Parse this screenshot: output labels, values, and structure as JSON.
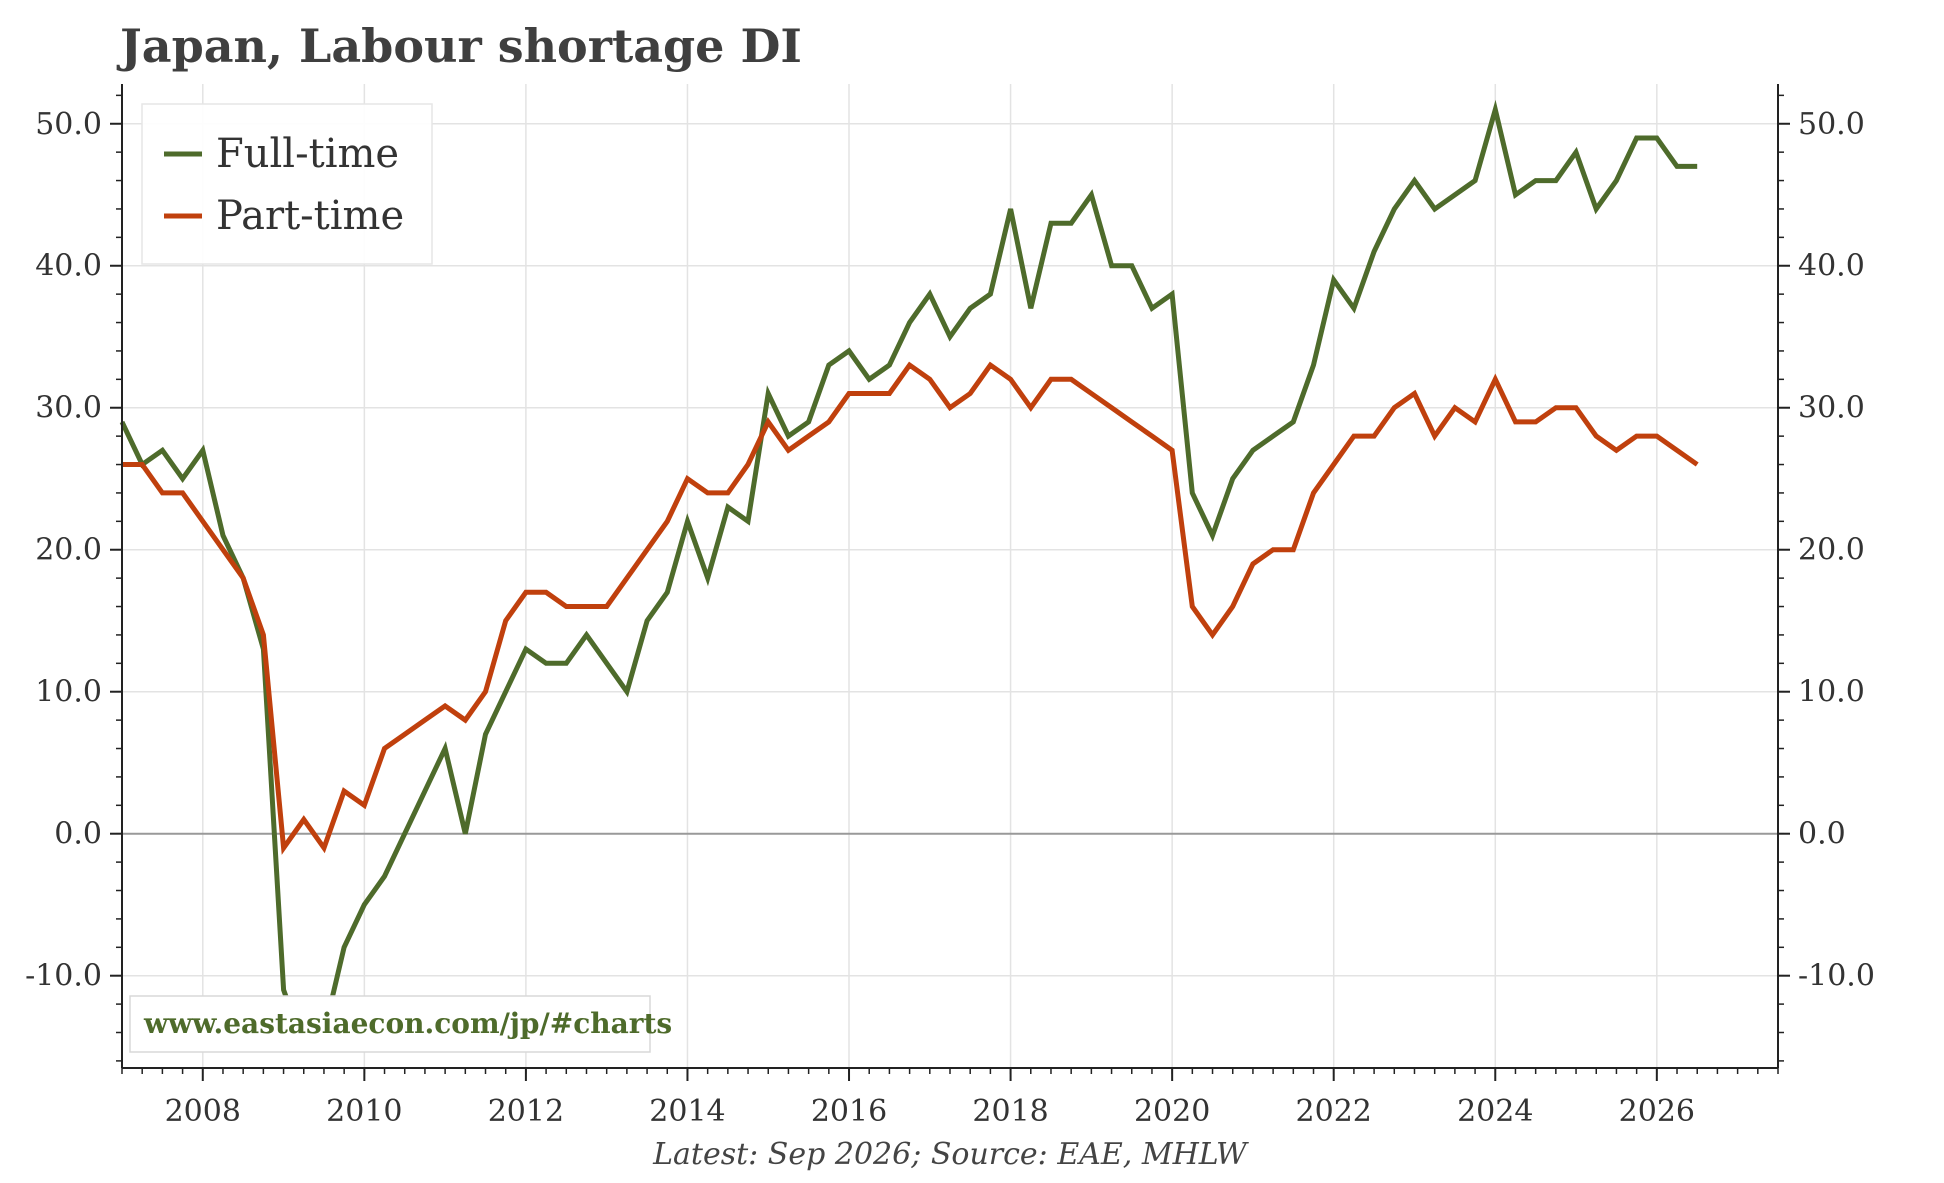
{
  "chart_data": {
    "type": "line",
    "title": "Japan, Labour shortage DI",
    "footer": "Latest: Sep 2026; Source: EAE, MHLW",
    "watermark": "www.eastasiaecon.com/jp/#charts",
    "xlim": [
      2007.0,
      2027.5
    ],
    "ylim": [
      -16.5,
      52.8
    ],
    "x_ticks": [
      2008,
      2010,
      2012,
      2014,
      2016,
      2018,
      2020,
      2022,
      2024,
      2026
    ],
    "x_tick_labels": [
      "2008",
      "2010",
      "2012",
      "2014",
      "2016",
      "2018",
      "2020",
      "2022",
      "2024",
      "2026"
    ],
    "y_ticks": [
      -10,
      0,
      10,
      20,
      30,
      40,
      50
    ],
    "y_tick_labels": [
      "-10.0",
      "0.0",
      "10.0",
      "20.0",
      "30.0",
      "40.0",
      "50.0"
    ],
    "y_minor_step": 2,
    "zero_line": true,
    "grid": true,
    "legend_position": "top-left",
    "colors": {
      "full_time": "#4e6b2b",
      "part_time": "#c0400d",
      "watermark": "#4e6b2b",
      "zero_line": "#999999",
      "grid": "#e3e3e3"
    },
    "series": [
      {
        "name": "Full-time",
        "color": "#4e6b2b",
        "x": [
          2007.0,
          2007.25,
          2007.5,
          2007.75,
          2008.0,
          2008.25,
          2008.5,
          2008.75,
          2009.0,
          2009.25,
          2009.5,
          2009.75,
          2010.0,
          2010.25,
          2010.5,
          2010.75,
          2011.0,
          2011.25,
          2011.5,
          2011.75,
          2012.0,
          2012.25,
          2012.5,
          2012.75,
          2013.0,
          2013.25,
          2013.5,
          2013.75,
          2014.0,
          2014.25,
          2014.5,
          2014.75,
          2015.0,
          2015.25,
          2015.5,
          2015.75,
          2016.0,
          2016.25,
          2016.5,
          2016.75,
          2017.0,
          2017.25,
          2017.5,
          2017.75,
          2018.0,
          2018.25,
          2018.5,
          2018.75,
          2019.0,
          2019.25,
          2019.5,
          2019.75,
          2020.0,
          2020.25,
          2020.5,
          2020.75,
          2021.0,
          2021.25,
          2021.5,
          2021.75,
          2022.0,
          2022.25,
          2022.5,
          2022.75,
          2023.0,
          2023.25,
          2023.5,
          2023.75,
          2024.0,
          2024.25,
          2024.5,
          2024.75,
          2025.0,
          2025.25,
          2025.5,
          2025.75,
          2026.0,
          2026.25,
          2026.5
        ],
        "values": [
          29,
          26,
          27,
          25,
          27,
          21,
          18,
          13,
          -11,
          -15,
          -14,
          -8,
          -5,
          -3,
          0,
          3,
          6,
          0,
          7,
          10,
          13,
          12,
          12,
          14,
          12,
          10,
          15,
          17,
          22,
          18,
          23,
          22,
          31,
          28,
          29,
          33,
          34,
          32,
          33,
          36,
          38,
          35,
          37,
          38,
          44,
          37,
          43,
          43,
          45,
          40,
          40,
          37,
          38,
          24,
          21,
          25,
          27,
          28,
          29,
          33,
          39,
          37,
          41,
          44,
          46,
          44,
          45,
          46,
          51,
          45,
          46,
          46,
          48,
          44,
          46,
          49,
          49,
          47,
          47
        ]
      },
      {
        "name": "Part-time",
        "color": "#c0400d",
        "x": [
          2007.0,
          2007.25,
          2007.5,
          2007.75,
          2008.0,
          2008.25,
          2008.5,
          2008.75,
          2009.0,
          2009.25,
          2009.5,
          2009.75,
          2010.0,
          2010.25,
          2010.5,
          2010.75,
          2011.0,
          2011.25,
          2011.5,
          2011.75,
          2012.0,
          2012.25,
          2012.5,
          2012.75,
          2013.0,
          2013.25,
          2013.5,
          2013.75,
          2014.0,
          2014.25,
          2014.5,
          2014.75,
          2015.0,
          2015.25,
          2015.5,
          2015.75,
          2016.0,
          2016.25,
          2016.5,
          2016.75,
          2017.0,
          2017.25,
          2017.5,
          2017.75,
          2018.0,
          2018.25,
          2018.5,
          2018.75,
          2019.0,
          2019.25,
          2019.5,
          2019.75,
          2020.0,
          2020.25,
          2020.5,
          2020.75,
          2021.0,
          2021.25,
          2021.5,
          2021.75,
          2022.0,
          2022.25,
          2022.5,
          2022.75,
          2023.0,
          2023.25,
          2023.5,
          2023.75,
          2024.0,
          2024.25,
          2024.5,
          2024.75,
          2025.0,
          2025.25,
          2025.5,
          2025.75,
          2026.0,
          2026.25,
          2026.5
        ],
        "values": [
          26,
          26,
          24,
          24,
          22,
          20,
          18,
          14,
          -1,
          1,
          -1,
          3,
          2,
          6,
          7,
          8,
          9,
          8,
          10,
          15,
          17,
          17,
          16,
          16,
          16,
          18,
          20,
          22,
          25,
          24,
          24,
          26,
          29,
          27,
          28,
          29,
          31,
          31,
          31,
          33,
          32,
          30,
          31,
          33,
          32,
          30,
          32,
          32,
          31,
          30,
          29,
          28,
          27,
          16,
          14,
          16,
          19,
          20,
          20,
          24,
          26,
          28,
          28,
          30,
          31,
          28,
          30,
          29,
          32,
          29,
          29,
          30,
          30,
          28,
          27,
          28,
          28,
          27,
          26
        ]
      }
    ]
  }
}
